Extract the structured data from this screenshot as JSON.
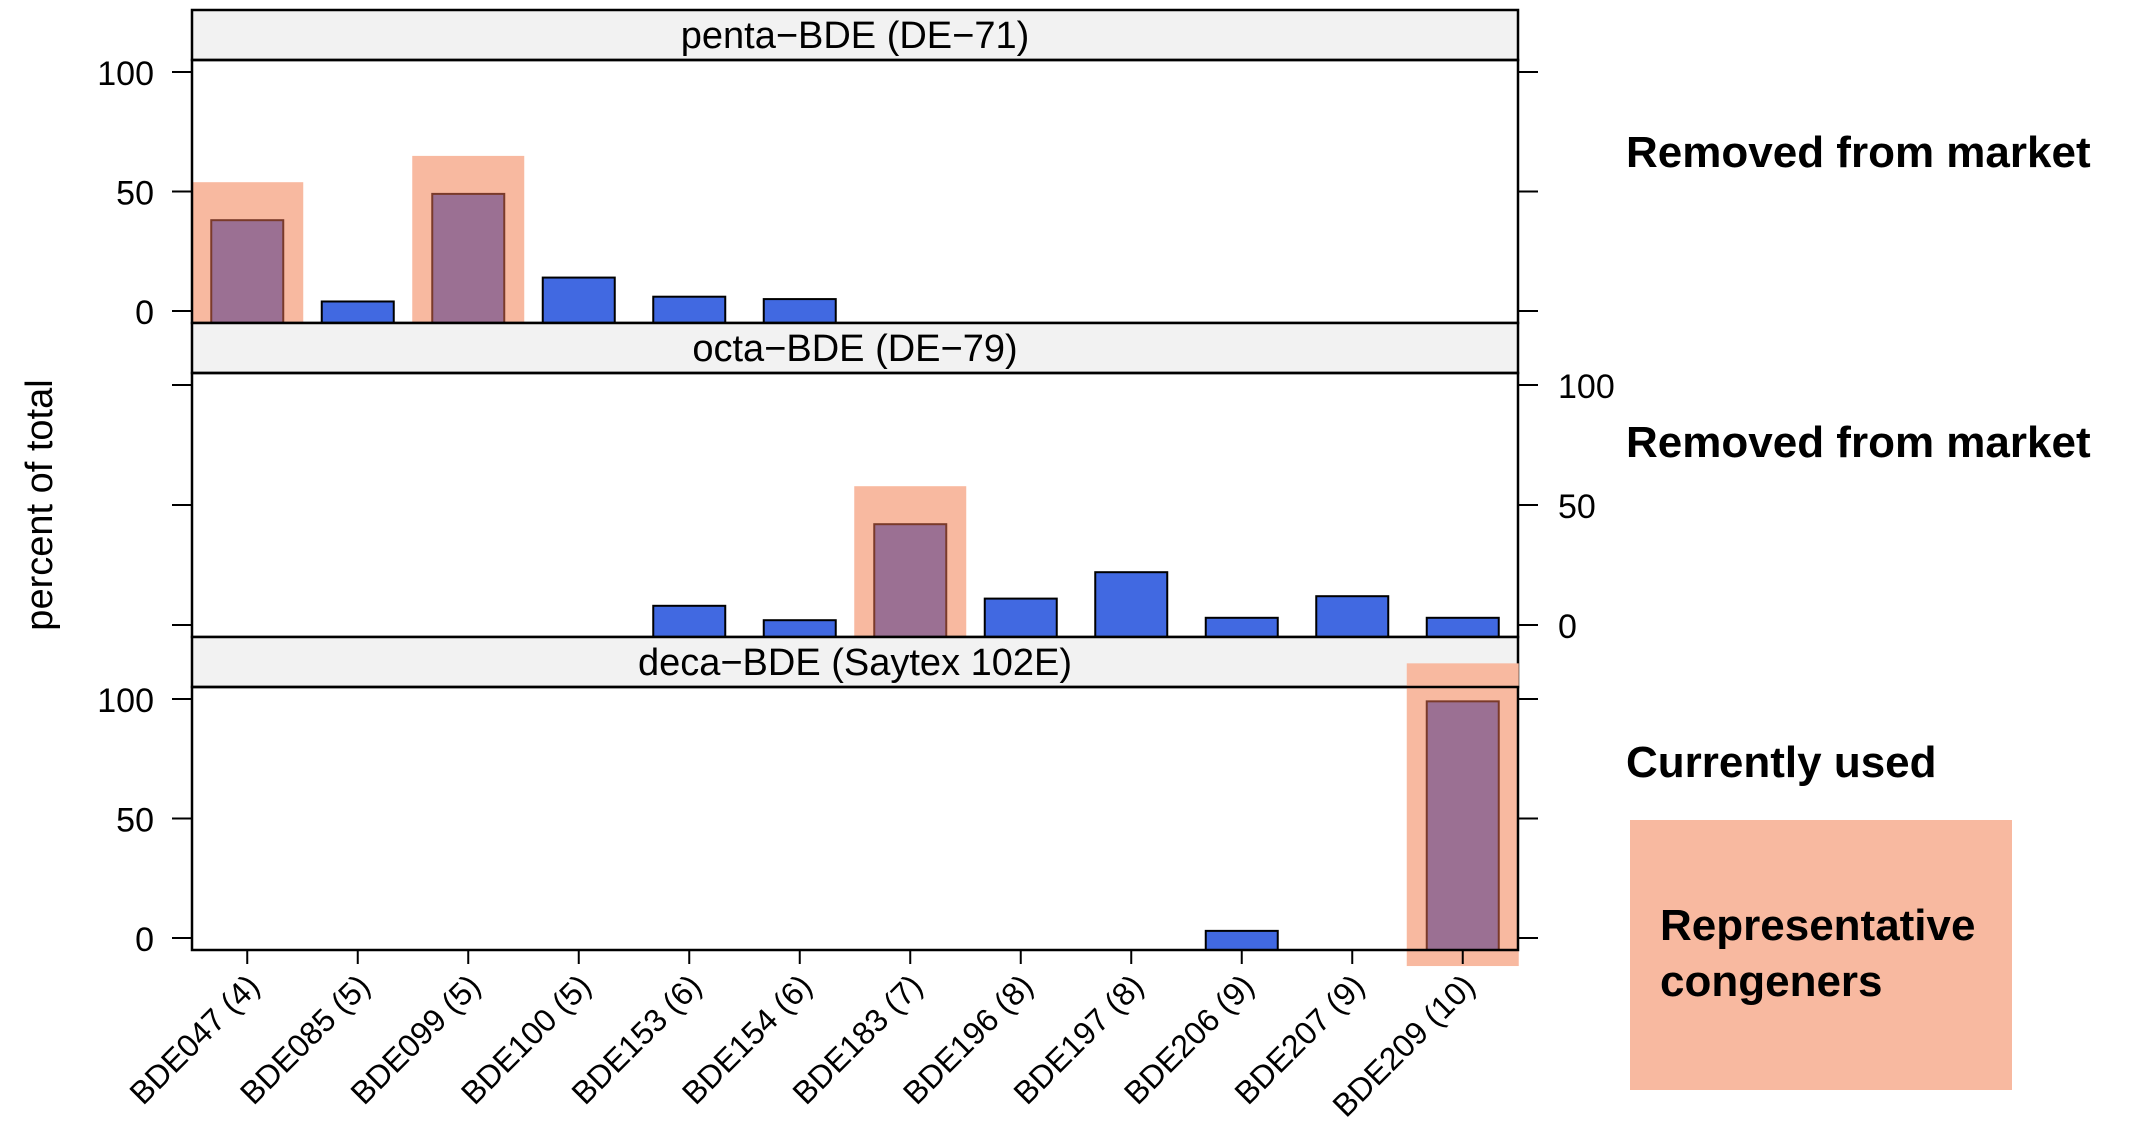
{
  "chart_data": {
    "type": "bar",
    "ylabel": "percent of total",
    "yticks": [
      0,
      50,
      100
    ],
    "ylim": [
      -5,
      105
    ],
    "categories": [
      "BDE047 (4)",
      "BDE085 (5)",
      "BDE099 (5)",
      "BDE100 (5)",
      "BDE153 (6)",
      "BDE154 (6)",
      "BDE183 (7)",
      "BDE196 (8)",
      "BDE197 (8)",
      "BDE206 (9)",
      "BDE207 (9)",
      "BDE209 (10)"
    ],
    "panels": [
      {
        "title": "penta−BDE (DE−71)",
        "status": "Removed from market",
        "values": [
          38,
          4,
          49,
          14,
          6,
          5,
          0,
          0,
          0,
          0,
          0,
          0
        ],
        "representative": [
          "BDE047 (4)",
          "BDE099 (5)"
        ]
      },
      {
        "title": "octa−BDE (DE−79)",
        "status": "Removed from market",
        "values": [
          0,
          0,
          0,
          0,
          8,
          2,
          42,
          11,
          22,
          3,
          12,
          3
        ],
        "representative": [
          "BDE183 (7)"
        ]
      },
      {
        "title": "deca−BDE (Saytex 102E)",
        "status": "Currently used",
        "values": [
          0,
          0,
          0,
          0,
          0,
          0,
          0,
          0,
          0,
          3,
          0,
          99
        ],
        "representative": [
          "BDE209 (10)"
        ]
      }
    ],
    "legend": "Representative congeners",
    "colors": {
      "bar": "#4169e1",
      "representative_bar": "#9b7093",
      "highlight": "#f8b9a0",
      "strip": "#f2f2f2"
    }
  }
}
